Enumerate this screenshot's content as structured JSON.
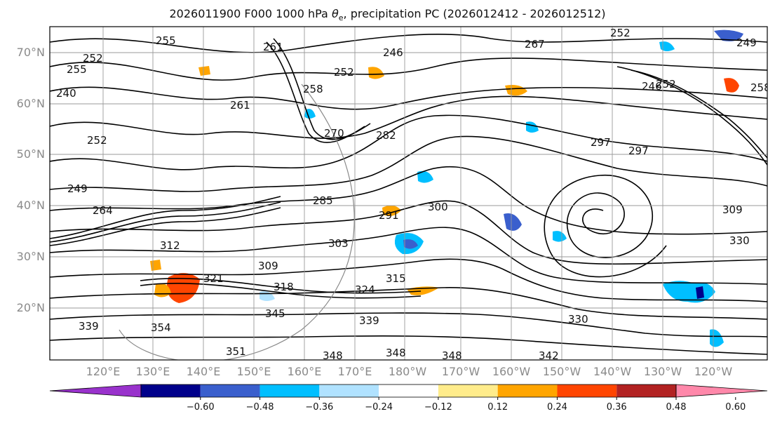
{
  "title_prefix": "2026011900 F000 1000 hPa ",
  "title_symbol": "θ",
  "title_sub": "e",
  "title_suffix": ", precipitation PC (2026012412 - 2026012512)",
  "lat_labels": [
    "70°N",
    "60°N",
    "50°N",
    "40°N",
    "30°N",
    "20°N"
  ],
  "lon_labels": [
    "120°E",
    "130°E",
    "140°E",
    "150°E",
    "160°E",
    "170°E",
    "180°W",
    "170°W",
    "160°W",
    "150°W",
    "140°W",
    "130°W",
    "120°W"
  ],
  "colorbar": {
    "colors": [
      "#9932cc",
      "#00008b",
      "#3a5fcd",
      "#00bfff",
      "#b0e2ff",
      "#ffffff",
      "#ffec8b",
      "#ffa500",
      "#ff4500",
      "#b22222",
      "#ff88aa"
    ],
    "tick_labels": [
      "−0.60",
      "−0.48",
      "−0.36",
      "−0.24",
      "−0.12",
      "0.12",
      "0.24",
      "0.36",
      "0.48",
      "0.60"
    ]
  },
  "contour_labels": [
    "255",
    "252",
    "255",
    "261",
    "246",
    "252",
    "267",
    "252",
    "240",
    "258",
    "252",
    "261",
    "270",
    "282",
    "297",
    "297",
    "252",
    "249",
    "264",
    "285",
    "300",
    "291",
    "309",
    "303",
    "309",
    "318",
    "321",
    "324",
    "315",
    "339",
    "330",
    "354",
    "351",
    "348",
    "348",
    "348",
    "342",
    "339",
    "345",
    "312",
    "330",
    "246",
    "258",
    "249"
  ]
}
